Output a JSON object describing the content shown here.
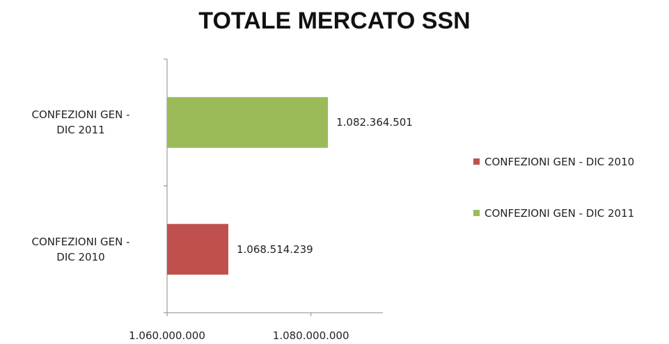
{
  "chart_data": {
    "type": "hbar",
    "title": "TOTALE MERCATO SSN",
    "categories": [
      "CONFEZIONI GEN - DIC 2010",
      "CONFEZIONI GEN - DIC 2011"
    ],
    "series": [
      {
        "name": "CONFEZIONI GEN - DIC 2010",
        "color": "#c0504d",
        "values": [
          1068514239,
          null
        ],
        "value_labels": [
          "1.068.514.239",
          null
        ]
      },
      {
        "name": "CONFEZIONI GEN - DIC 2011",
        "color": "#9bbb59",
        "values": [
          null,
          1082364501
        ],
        "value_labels": [
          null,
          "1.082.364.501"
        ]
      }
    ],
    "xlim": [
      1060000000,
      1090000000
    ],
    "xticks": [
      {
        "value": 1060000000,
        "label": "1.060.000.000"
      },
      {
        "value": 1080000000,
        "label": "1.080.000.000"
      }
    ],
    "legend": "right"
  }
}
